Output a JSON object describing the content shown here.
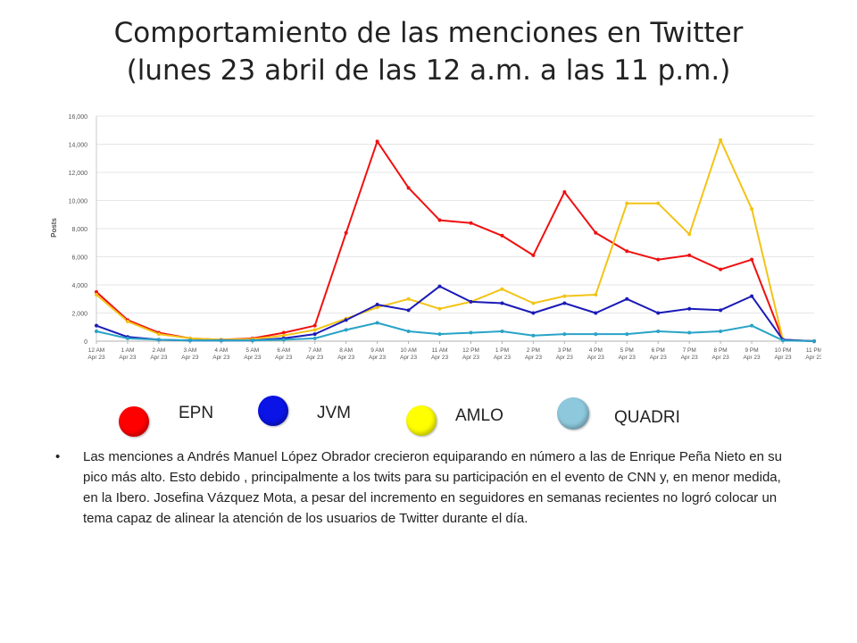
{
  "slide": {
    "title_line1": "Comportamiento de las menciones en Twitter",
    "title_line2": "(lunes 23 abril de las 12 a.m. a las 11 p.m.)",
    "bullet_mark": "•",
    "bullet_text": "Las menciones a Andrés Manuel López Obrador crecieron equiparando en número a las de Enrique Peña Nieto en su pico más alto. Esto debido , principalmente a los twits para su participación en el evento de CNN y, en menor medida, en la Ibero. Josefina Vázquez Mota, a pesar del incremento en seguidores en semanas recientes no logró colocar un tema capaz de alinear la atención de los usuarios de Twitter durante el día."
  },
  "legend": [
    {
      "label": "EPN",
      "color": "#ff0000"
    },
    {
      "label": "JVM",
      "color": "#0a14e6"
    },
    {
      "label": "AMLO",
      "color": "#ffff00"
    },
    {
      "label": "QUADRI",
      "color": "#8ec8dd"
    }
  ],
  "chart_data": {
    "type": "line",
    "ylabel": "Posts",
    "ylim": [
      0,
      16000
    ],
    "yticks": [
      "0",
      "2,000",
      "4,000",
      "6,000",
      "8,000",
      "10,000",
      "12,000",
      "14,000",
      "16,000"
    ],
    "categories": [
      [
        "12 AM",
        "Apr 23"
      ],
      [
        "1 AM",
        "Apr 23"
      ],
      [
        "2 AM",
        "Apr 23"
      ],
      [
        "3 AM",
        "Apr 23"
      ],
      [
        "4 AM",
        "Apr 23"
      ],
      [
        "5 AM",
        "Apr 23"
      ],
      [
        "6 AM",
        "Apr 23"
      ],
      [
        "7 AM",
        "Apr 23"
      ],
      [
        "8 AM",
        "Apr 23"
      ],
      [
        "9 AM",
        "Apr 23"
      ],
      [
        "10 AM",
        "Apr 23"
      ],
      [
        "11 AM",
        "Apr 23"
      ],
      [
        "12 PM",
        "Apr 23"
      ],
      [
        "1 PM",
        "Apr 23"
      ],
      [
        "2 PM",
        "Apr 23"
      ],
      [
        "3 PM",
        "Apr 23"
      ],
      [
        "4 PM",
        "Apr 23"
      ],
      [
        "5 PM",
        "Apr 23"
      ],
      [
        "6 PM",
        "Apr 23"
      ],
      [
        "7 PM",
        "Apr 23"
      ],
      [
        "8 PM",
        "Apr 23"
      ],
      [
        "9 PM",
        "Apr 23"
      ],
      [
        "10 PM",
        "Apr 23"
      ],
      [
        "11 PM",
        "Apr 23"
      ]
    ],
    "grid": true,
    "series": [
      {
        "color": "#f01010",
        "values": [
          3500,
          1500,
          600,
          200,
          100,
          200,
          600,
          1100,
          7700,
          14200,
          10900,
          8600,
          8400,
          7500,
          6100,
          10600,
          7700,
          6400,
          5800,
          6100,
          5100,
          5800,
          100,
          0
        ]
      },
      {
        "color": "#f2c418",
        "values": [
          3300,
          1400,
          500,
          200,
          100,
          150,
          400,
          800,
          1600,
          2400,
          3000,
          2300,
          2800,
          3700,
          2700,
          3200,
          3300,
          9800,
          9800,
          7600,
          14300,
          9400,
          100,
          0
        ]
      },
      {
        "color": "#1a1ab8",
        "values": [
          1100,
          300,
          100,
          50,
          50,
          50,
          200,
          500,
          1500,
          2600,
          2200,
          3900,
          2800,
          2700,
          2000,
          2700,
          2000,
          3000,
          2000,
          2300,
          2200,
          3200,
          100,
          0
        ]
      },
      {
        "color": "#29a3c7",
        "values": [
          700,
          200,
          100,
          50,
          50,
          50,
          100,
          200,
          800,
          1300,
          700,
          500,
          600,
          700,
          400,
          500,
          500,
          500,
          700,
          600,
          700,
          1100,
          50,
          0
        ]
      }
    ]
  }
}
